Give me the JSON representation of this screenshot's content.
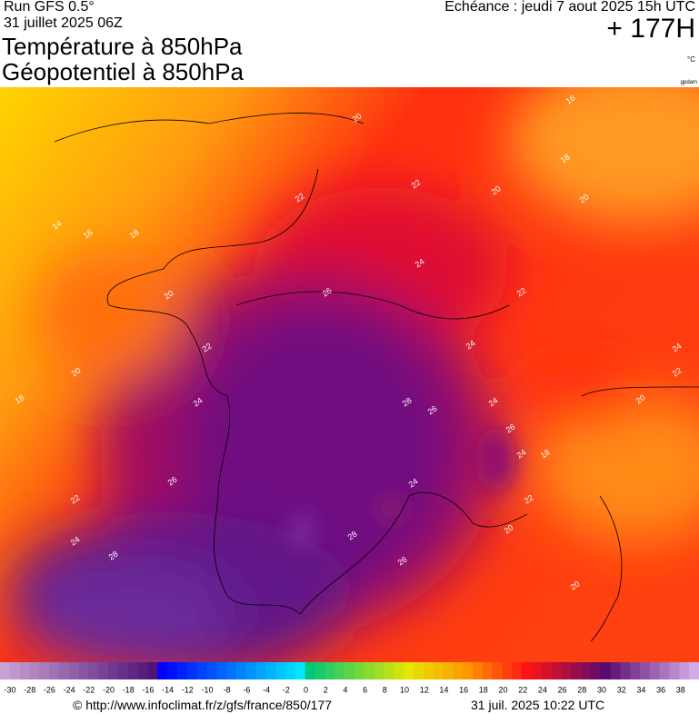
{
  "header": {
    "run": "Run GFS 0.5°",
    "run_date": "31 juillet 2025 06Z",
    "title_1": "Température à 850hPa",
    "title_2": "Géopotentiel à 850hPa",
    "valid": "Echéance : jeudi 7 aout 2025 15h UTC",
    "lead": "+ 177H",
    "unit": "°C",
    "unit_2": "gpdam"
  },
  "map": {
    "contour_labels": [
      20,
      16,
      18,
      20,
      22,
      22,
      20,
      14,
      16,
      18,
      24,
      26,
      22,
      20,
      22,
      24,
      24,
      20,
      22,
      18,
      24,
      28,
      26,
      20,
      24,
      26,
      24,
      18,
      26,
      24,
      22,
      22,
      20,
      24,
      28,
      28,
      26,
      20
    ]
  },
  "colorbar": {
    "labels": [
      -30,
      -28,
      -26,
      -24,
      -22,
      -20,
      -18,
      -16,
      -14,
      -12,
      -10,
      -8,
      -6,
      -4,
      -2,
      0,
      2,
      4,
      6,
      8,
      10,
      12,
      14,
      16,
      18,
      20,
      22,
      24,
      26,
      28,
      30,
      32,
      34,
      36,
      38
    ]
  },
  "footer": {
    "url": "© http://www.infoclimat.fr/z/gfs/france/850/177",
    "timestamp": "31 juil. 2025 10:22 UTC"
  }
}
